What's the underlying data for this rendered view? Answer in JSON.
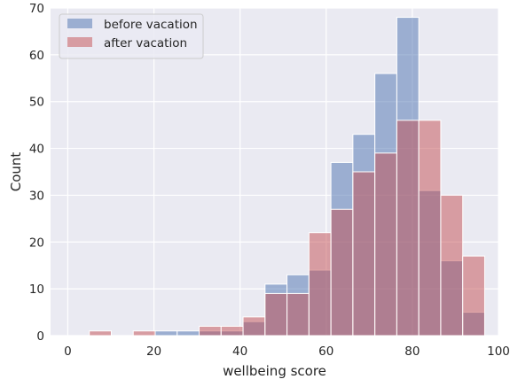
{
  "chart_data": {
    "type": "bar",
    "subtype": "histogram-overlay",
    "xlabel": "wellbeing score",
    "ylabel": "Count",
    "xlim": [
      -4,
      100
    ],
    "ylim": [
      0,
      70
    ],
    "xticks": [
      0,
      20,
      40,
      60,
      80,
      100
    ],
    "yticks": [
      0,
      10,
      20,
      30,
      40,
      50,
      60,
      70
    ],
    "grid": true,
    "legend_position": "top-left",
    "bin_edges": [
      5.0,
      10.1,
      15.2,
      20.3,
      25.4,
      30.5,
      35.6,
      40.7,
      45.8,
      50.9,
      56.0,
      61.1,
      66.2,
      71.3,
      76.4,
      81.5,
      86.6,
      91.7,
      96.8
    ],
    "series": [
      {
        "name": "before vacation",
        "color": "#4c72b0",
        "values": [
          0,
          0,
          0,
          1,
          1,
          1,
          1,
          3,
          11,
          13,
          14,
          37,
          43,
          56,
          68,
          31,
          16,
          5
        ]
      },
      {
        "name": "after vacation",
        "color": "#c44e52",
        "values": [
          1,
          0,
          1,
          0,
          0,
          2,
          2,
          4,
          9,
          9,
          22,
          27,
          35,
          39,
          46,
          46,
          30,
          17
        ]
      }
    ]
  },
  "style": {
    "plot_background": "#eaeaf2",
    "grid_color": "#ffffff",
    "text_color": "#262626"
  }
}
